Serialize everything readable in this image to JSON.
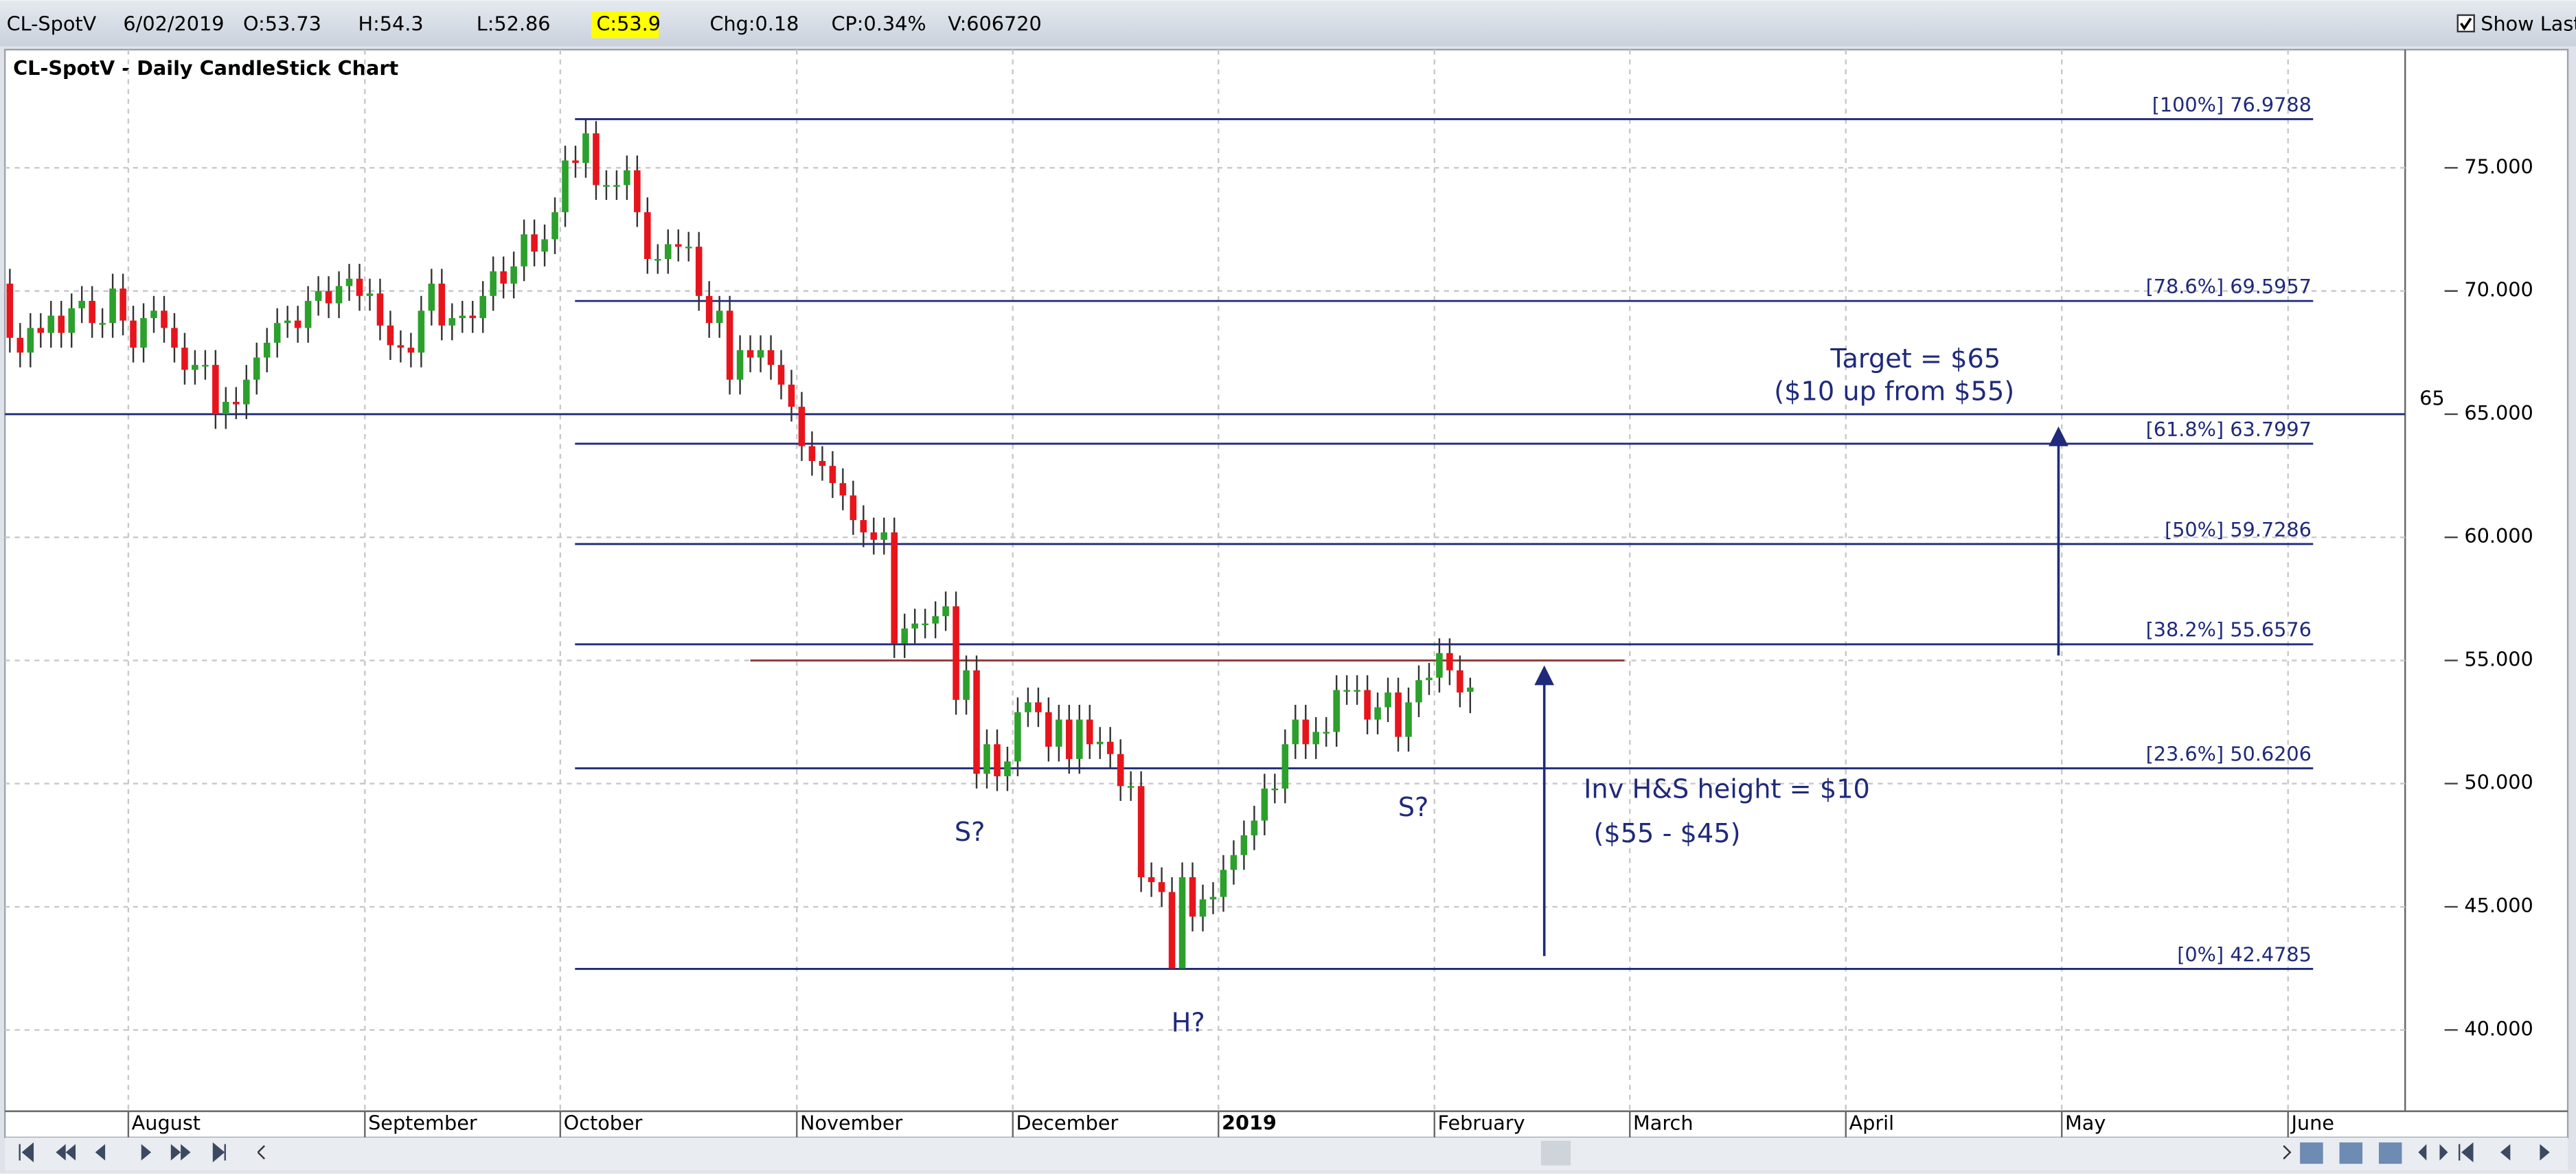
{
  "header": {
    "symbol": "CL-SpotV",
    "date": "6/02/2019",
    "open": "O:53.73",
    "high": "H:54.3",
    "low": "L:52.86",
    "close": "C:53.9",
    "change": "Chg:0.18",
    "change_pct": "CP:0.34%",
    "volume": "V:606720",
    "show_last": "Show Last"
  },
  "chart_data": {
    "type": "candlestick",
    "title": "CL-SpotV - Daily CandleStick Chart",
    "categories": [
      null,
      null,
      null,
      null,
      null,
      null,
      null,
      null,
      null,
      null,
      null,
      null,
      "August",
      null,
      null,
      null,
      null,
      null,
      null,
      null,
      null,
      null,
      null,
      null,
      null,
      null,
      null,
      null,
      null,
      null,
      null,
      null,
      null,
      null,
      null,
      "September",
      null,
      null,
      null,
      null,
      null,
      null,
      null,
      null,
      null,
      null,
      null,
      null,
      null,
      null,
      null,
      null,
      null,
      null,
      "October",
      null,
      null,
      null,
      null,
      null,
      null,
      null,
      null,
      null,
      null,
      null,
      null,
      null,
      null,
      null,
      null,
      null,
      null,
      null,
      null,
      null,
      null,
      "November",
      null,
      null,
      null,
      null,
      null,
      null,
      null,
      null,
      null,
      null,
      null,
      null,
      null,
      null,
      null,
      null,
      null,
      null,
      null,
      null,
      "December",
      null,
      null,
      null,
      null,
      null,
      null,
      null,
      null,
      null,
      null,
      null,
      null,
      null,
      null,
      null,
      null,
      null,
      null,
      null,
      "2019",
      null,
      null,
      null,
      null,
      null,
      null,
      null,
      null,
      null,
      null,
      null,
      null,
      null,
      null,
      null,
      null,
      null,
      null,
      null,
      null,
      "February",
      null,
      null,
      null,
      null,
      null,
      null,
      null,
      null,
      null,
      null,
      null,
      null,
      null,
      null,
      null,
      null,
      null,
      null,
      "March",
      null,
      null,
      null,
      null,
      null,
      null,
      null,
      null,
      null,
      null,
      null,
      null,
      null,
      null,
      null,
      null,
      null,
      null,
      null,
      null,
      "April",
      null,
      null,
      null,
      null,
      null,
      null,
      null,
      null,
      null,
      null,
      null,
      null,
      null,
      null,
      null,
      null,
      null,
      null,
      null,
      null,
      "May",
      null,
      null,
      null,
      null,
      null,
      null,
      null,
      null,
      null,
      null,
      null,
      null,
      null,
      null,
      null,
      null,
      null,
      null,
      null,
      null,
      null,
      "June",
      null,
      null,
      null,
      null,
      null,
      null,
      null,
      null,
      null,
      null
    ],
    "open": [
      70.3,
      68.1,
      67.5,
      68.5,
      68.3,
      69.0,
      68.3,
      69.3,
      69.6,
      68.7,
      68.7,
      70.1,
      68.8,
      67.7,
      68.9,
      69.2,
      68.5,
      67.7,
      66.8,
      67.0,
      67.0,
      65.0,
      65.5,
      65.4,
      66.4,
      67.3,
      67.9,
      68.7,
      68.8,
      68.5,
      69.6,
      70.0,
      69.5,
      70.2,
      70.5,
      69.8,
      69.9,
      68.6,
      67.8,
      67.7,
      67.5,
      69.2,
      70.3,
      68.6,
      68.9,
      69.0,
      68.9,
      69.8,
      70.8,
      70.3,
      71.0,
      72.3,
      71.6,
      72.1,
      73.2,
      75.3,
      75.2,
      76.4,
      74.3,
      74.3,
      74.3,
      74.9,
      73.2,
      71.3,
      71.3,
      71.9,
      71.8,
      71.8,
      69.8,
      68.7,
      69.2,
      66.4,
      67.6,
      67.3,
      67.6,
      67.0,
      66.2,
      65.3,
      63.7,
      63.1,
      62.9,
      62.2,
      61.7,
      60.7,
      60.2,
      59.9,
      60.2,
      55.7,
      56.3,
      56.5,
      56.5,
      56.8,
      57.2,
      53.4,
      54.6,
      50.4,
      51.6,
      50.3,
      50.9,
      52.9,
      53.3,
      52.9,
      51.5,
      52.6,
      51.0,
      52.6,
      51.6,
      51.7,
      51.2,
      49.9,
      49.9,
      46.2,
      46.0,
      45.6,
      42.5,
      46.2,
      44.6,
      45.3,
      45.4,
      46.5,
      47.1,
      47.9,
      48.5,
      49.8,
      49.8,
      51.6,
      52.6,
      51.6,
      52.1,
      52.1,
      53.8,
      53.8,
      53.8,
      52.6,
      53.1,
      53.7,
      51.9,
      53.3,
      54.2,
      54.3,
      55.3,
      54.6,
      53.73,
      null,
      null,
      null,
      null,
      null,
      null,
      null,
      null,
      null,
      null,
      null,
      null,
      null,
      null,
      null,
      null,
      null,
      null,
      null,
      null,
      null,
      null,
      null,
      null,
      null,
      null,
      null,
      null,
      null,
      null,
      null,
      null,
      null,
      null,
      null,
      null,
      null,
      null,
      null,
      null,
      null,
      null,
      null,
      null,
      null,
      null,
      null,
      null,
      null,
      null,
      null,
      null,
      null,
      null,
      null,
      null,
      null,
      null,
      null,
      null,
      null,
      null,
      null,
      null,
      null,
      null,
      null,
      null,
      null,
      null,
      null,
      null,
      null,
      null,
      null,
      null,
      null,
      null,
      null,
      null,
      null,
      null,
      null,
      null,
      null,
      null,
      null,
      null,
      null,
      null
    ],
    "high": [
      70.9,
      68.7,
      69.1,
      69.1,
      69.6,
      69.6,
      69.9,
      70.2,
      70.2,
      69.3,
      70.7,
      70.7,
      69.4,
      69.5,
      69.8,
      69.8,
      69.1,
      68.3,
      67.6,
      67.6,
      67.6,
      66.1,
      66.1,
      67.0,
      67.9,
      68.5,
      69.3,
      69.4,
      69.4,
      70.2,
      70.6,
      70.6,
      70.8,
      71.1,
      71.1,
      70.5,
      70.5,
      69.2,
      68.4,
      68.3,
      69.8,
      70.9,
      70.9,
      69.5,
      69.6,
      69.6,
      70.4,
      71.4,
      71.4,
      71.6,
      72.9,
      72.9,
      72.7,
      73.8,
      75.9,
      75.9,
      76.98,
      76.9,
      74.9,
      74.9,
      75.5,
      75.5,
      73.8,
      71.9,
      72.5,
      72.5,
      72.4,
      72.4,
      70.4,
      69.8,
      69.8,
      68.2,
      68.2,
      68.2,
      68.2,
      67.6,
      66.8,
      65.9,
      64.3,
      63.7,
      63.5,
      62.8,
      62.3,
      61.3,
      60.8,
      60.8,
      60.8,
      56.9,
      57.1,
      57.1,
      57.4,
      57.8,
      57.8,
      55.2,
      55.2,
      52.2,
      52.2,
      51.5,
      53.5,
      53.9,
      53.9,
      53.5,
      53.2,
      53.2,
      53.2,
      53.2,
      52.3,
      52.3,
      51.8,
      50.5,
      50.5,
      46.8,
      46.6,
      46.2,
      46.8,
      46.8,
      45.9,
      46.0,
      47.1,
      47.7,
      48.5,
      49.1,
      50.4,
      50.4,
      52.2,
      53.2,
      53.2,
      52.7,
      52.7,
      54.4,
      54.4,
      54.4,
      54.4,
      53.7,
      54.3,
      54.3,
      53.9,
      54.8,
      54.9,
      55.9,
      55.9,
      55.2,
      54.3,
      null,
      null,
      null,
      null,
      null,
      null,
      null,
      null,
      null,
      null,
      null,
      null,
      null,
      null,
      null,
      null,
      null,
      null,
      null,
      null,
      null,
      null,
      null,
      null,
      null,
      null,
      null,
      null,
      null,
      null,
      null,
      null,
      null,
      null,
      null,
      null,
      null,
      null,
      null,
      null,
      null,
      null,
      null,
      null,
      null,
      null,
      null,
      null,
      null,
      null,
      null,
      null,
      null,
      null,
      null,
      null,
      null,
      null,
      null,
      null,
      null,
      null,
      null,
      null,
      null,
      null,
      null,
      null,
      null,
      null,
      null,
      null,
      null,
      null,
      null,
      null,
      null,
      null,
      null,
      null,
      null,
      null,
      null,
      null,
      null,
      null,
      null,
      null,
      null,
      null
    ],
    "low": [
      67.5,
      66.9,
      66.9,
      67.7,
      67.7,
      67.7,
      67.7,
      68.7,
      68.1,
      68.1,
      68.1,
      68.2,
      67.1,
      67.1,
      68.3,
      67.9,
      67.1,
      66.2,
      66.2,
      66.4,
      64.4,
      64.4,
      64.8,
      64.8,
      65.8,
      66.7,
      67.3,
      68.1,
      67.9,
      67.9,
      69.0,
      68.9,
      68.9,
      69.6,
      69.2,
      69.2,
      68.0,
      67.2,
      67.1,
      66.9,
      66.9,
      68.6,
      68.0,
      68.0,
      68.3,
      68.3,
      68.3,
      69.2,
      69.7,
      69.7,
      70.4,
      71.0,
      71.0,
      71.5,
      72.6,
      74.6,
      74.6,
      73.7,
      73.7,
      73.7,
      73.7,
      72.6,
      70.7,
      70.7,
      70.7,
      71.2,
      71.2,
      69.2,
      68.1,
      68.1,
      65.8,
      65.8,
      66.7,
      66.7,
      66.4,
      65.6,
      64.7,
      63.1,
      62.5,
      62.3,
      61.6,
      61.1,
      60.1,
      59.6,
      59.3,
      59.3,
      55.1,
      55.1,
      55.7,
      55.9,
      55.9,
      56.2,
      52.8,
      52.8,
      49.8,
      49.8,
      49.7,
      49.7,
      50.3,
      52.3,
      52.3,
      50.9,
      50.9,
      50.4,
      50.4,
      51.0,
      51.0,
      50.6,
      49.3,
      49.3,
      45.6,
      45.4,
      45.0,
      42.48,
      42.5,
      44.0,
      44.0,
      44.7,
      44.8,
      45.9,
      46.5,
      47.3,
      47.9,
      49.2,
      49.2,
      51.0,
      51.0,
      51.0,
      51.5,
      51.5,
      53.2,
      53.2,
      52.0,
      52.0,
      52.5,
      51.3,
      51.3,
      52.7,
      53.6,
      53.7,
      54.0,
      53.1,
      52.86,
      null,
      null,
      null,
      null,
      null,
      null,
      null,
      null,
      null,
      null,
      null,
      null,
      null,
      null,
      null,
      null,
      null,
      null,
      null,
      null,
      null,
      null,
      null,
      null,
      null,
      null,
      null,
      null,
      null,
      null,
      null,
      null,
      null,
      null,
      null,
      null,
      null,
      null,
      null,
      null,
      null,
      null,
      null,
      null,
      null,
      null,
      null,
      null,
      null,
      null,
      null,
      null,
      null,
      null,
      null,
      null,
      null,
      null,
      null,
      null,
      null,
      null,
      null,
      null,
      null,
      null,
      null,
      null,
      null,
      null,
      null,
      null,
      null,
      null,
      null,
      null,
      null,
      null,
      null,
      null,
      null,
      null,
      null,
      null,
      null,
      null,
      null,
      null,
      null,
      null
    ],
    "close": [
      68.1,
      67.5,
      68.5,
      68.3,
      69.0,
      68.3,
      69.3,
      69.6,
      68.7,
      68.7,
      70.1,
      68.8,
      67.7,
      68.9,
      69.2,
      68.5,
      67.7,
      66.8,
      67.0,
      67.0,
      65.0,
      65.5,
      65.4,
      66.4,
      67.3,
      67.9,
      68.7,
      68.8,
      68.5,
      69.6,
      70.0,
      69.5,
      70.2,
      70.5,
      69.8,
      69.9,
      68.6,
      67.8,
      67.7,
      67.5,
      69.2,
      70.3,
      68.6,
      68.9,
      69.0,
      68.9,
      69.8,
      70.8,
      70.3,
      71.0,
      72.3,
      71.6,
      72.1,
      73.2,
      75.3,
      75.2,
      76.4,
      74.3,
      74.3,
      74.3,
      74.9,
      73.2,
      71.3,
      71.3,
      71.9,
      71.8,
      71.8,
      69.8,
      68.7,
      69.2,
      66.4,
      67.6,
      67.3,
      67.6,
      67.0,
      66.2,
      65.3,
      63.7,
      63.1,
      62.9,
      62.2,
      61.7,
      60.7,
      60.2,
      59.9,
      60.2,
      55.7,
      56.3,
      56.5,
      56.5,
      56.8,
      57.2,
      53.4,
      54.6,
      50.4,
      51.6,
      50.3,
      50.9,
      52.9,
      53.3,
      52.9,
      51.5,
      52.6,
      51.0,
      52.6,
      51.6,
      51.7,
      51.2,
      49.9,
      49.9,
      46.2,
      46.0,
      45.6,
      42.5,
      46.2,
      44.6,
      45.3,
      45.4,
      46.5,
      47.1,
      47.9,
      48.5,
      49.8,
      49.8,
      51.6,
      52.6,
      51.6,
      52.1,
      52.1,
      53.8,
      53.8,
      53.8,
      52.6,
      53.1,
      53.7,
      51.9,
      53.3,
      54.2,
      54.3,
      55.3,
      54.6,
      53.7,
      53.9,
      null,
      null,
      null,
      null,
      null,
      null,
      null,
      null,
      null,
      null,
      null,
      null,
      null,
      null,
      null,
      null,
      null,
      null,
      null,
      null,
      null,
      null,
      null,
      null,
      null,
      null,
      null,
      null,
      null,
      null,
      null,
      null,
      null,
      null,
      null,
      null,
      null,
      null,
      null,
      null,
      null,
      null,
      null,
      null,
      null,
      null,
      null,
      null,
      null,
      null,
      null,
      null,
      null,
      null,
      null,
      null,
      null,
      null,
      null,
      null,
      null,
      null,
      null,
      null,
      null,
      null,
      null,
      null,
      null,
      null,
      null,
      null,
      null,
      null,
      null,
      null,
      null,
      null,
      null,
      null,
      null,
      null,
      null,
      null,
      null,
      null,
      null,
      null,
      null,
      null
    ],
    "up_color": "#2ca02c",
    "down_color": "#e8141c",
    "ylim": [
      36.7,
      79.8
    ],
    "yticks": [
      {
        "value": 40,
        "label": "40.000"
      },
      {
        "value": 45,
        "label": "45.000"
      },
      {
        "value": 50,
        "label": "50.000"
      },
      {
        "value": 55,
        "label": "55.000"
      },
      {
        "value": 60,
        "label": "60.000"
      },
      {
        "value": 65,
        "label": "65.000"
      },
      {
        "value": 70,
        "label": "70.000"
      },
      {
        "value": 75,
        "label": "75.000"
      }
    ],
    "grid": true,
    "fib_color": "#1f2a7a",
    "fib_levels": [
      {
        "value": 76.9788,
        "label": "[100%] 76.9788"
      },
      {
        "value": 69.5957,
        "label": "[78.6%] 69.5957"
      },
      {
        "value": 63.7997,
        "label": "[61.8%] 63.7997"
      },
      {
        "value": 59.7286,
        "label": "[50%] 59.7286"
      },
      {
        "value": 55.6576,
        "label": "[38.2%] 55.6576"
      },
      {
        "value": 50.6206,
        "label": "[23.6%] 50.6206"
      },
      {
        "value": 42.4785,
        "label": "[0%] 42.4785"
      }
    ],
    "reference_line": {
      "value": 65,
      "color": "#1f2a7a"
    },
    "neckline": {
      "value": 55,
      "color": "#8b3a3a"
    },
    "arrows": [
      {
        "from": 43,
        "to": 54.8
      },
      {
        "from": 55.2,
        "to": 64.5
      }
    ],
    "annotations": {
      "target": "Target = $65",
      "target_note": "($10 up from $55)",
      "height": "Inv H&S height = $10",
      "height_note": "($55 - $45)",
      "left_shoulder": "S?",
      "right_shoulder": "S?",
      "head": "H?"
    }
  }
}
